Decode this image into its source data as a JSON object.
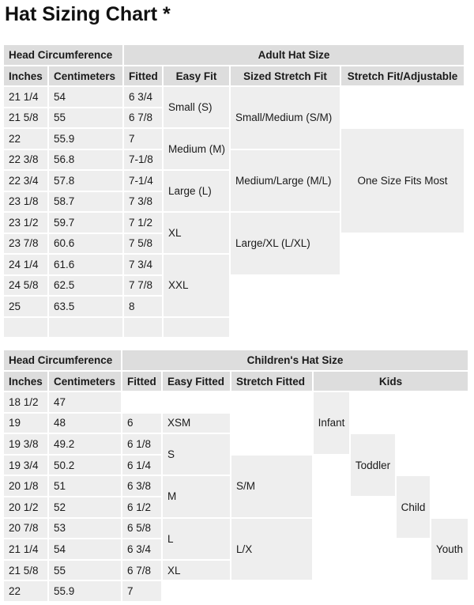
{
  "title": "Hat Sizing Chart *",
  "adult": {
    "group_header_left": "Head Circumference",
    "group_header_right": "Adult Hat Size",
    "headers": [
      "Inches",
      "Centimeters",
      "Fitted",
      "Easy Fit",
      "Sized Stretch Fit",
      "Stretch Fit/Adjustable"
    ],
    "rows": [
      {
        "in": "21 1/4",
        "cm": "54",
        "fitted": "6 3/4"
      },
      {
        "in": "21 5/8",
        "cm": "55",
        "fitted": "6 7/8"
      },
      {
        "in": "22",
        "cm": "55.9",
        "fitted": "7"
      },
      {
        "in": "22 3/8",
        "cm": "56.8",
        "fitted": "7-1/8"
      },
      {
        "in": "22 3/4",
        "cm": "57.8",
        "fitted": "7-1/4"
      },
      {
        "in": "23 1/8",
        "cm": "58.7",
        "fitted": "7 3/8"
      },
      {
        "in": "23 1/2",
        "cm": "59.7",
        "fitted": "7 1/2"
      },
      {
        "in": "23 7/8",
        "cm": "60.6",
        "fitted": "7 5/8"
      },
      {
        "in": "24 1/4",
        "cm": "61.6",
        "fitted": "7 3/4"
      },
      {
        "in": "24 5/8",
        "cm": "62.5",
        "fitted": "7 7/8"
      },
      {
        "in": "25",
        "cm": "63.5",
        "fitted": "8"
      }
    ],
    "easy_fit": [
      "Small (S)",
      "Medium (M)",
      "Large (L)",
      "XL",
      "XXL"
    ],
    "sized_stretch_fit": [
      "Small/Medium (S/M)",
      "Medium/Large (M/L)",
      "Large/XL (L/XL)"
    ],
    "stretch_fit_adjustable": "One Size Fits Most"
  },
  "children": {
    "group_header_left": "Head Circumference",
    "group_header_right": "Children's Hat Size",
    "headers": [
      "Inches",
      "Centimeters",
      "Fitted",
      "Easy Fitted",
      "Stretch Fitted",
      "Kids"
    ],
    "rows": [
      {
        "in": "18 1/2",
        "cm": "47",
        "fitted": ""
      },
      {
        "in": "19",
        "cm": "48",
        "fitted": "6"
      },
      {
        "in": "19 3/8",
        "cm": "49.2",
        "fitted": "6 1/8"
      },
      {
        "in": "19 3/4",
        "cm": "50.2",
        "fitted": "6 1/4"
      },
      {
        "in": "20 1/8",
        "cm": "51",
        "fitted": "6 3/8"
      },
      {
        "in": "20 1/2",
        "cm": "52",
        "fitted": "6 1/2"
      },
      {
        "in": "20 7/8",
        "cm": "53",
        "fitted": "6 5/8"
      },
      {
        "in": "21 1/4",
        "cm": "54",
        "fitted": "6 3/4"
      },
      {
        "in": "21 5/8",
        "cm": "55",
        "fitted": "6 7/8"
      },
      {
        "in": "22",
        "cm": "55.9",
        "fitted": "7"
      }
    ],
    "easy_fitted": [
      "XSM",
      "S",
      "M",
      "L",
      "XL"
    ],
    "stretch_fitted": [
      "S/M",
      "L/X"
    ],
    "kids": [
      "Infant",
      "Toddler",
      "Child",
      "Youth"
    ]
  }
}
